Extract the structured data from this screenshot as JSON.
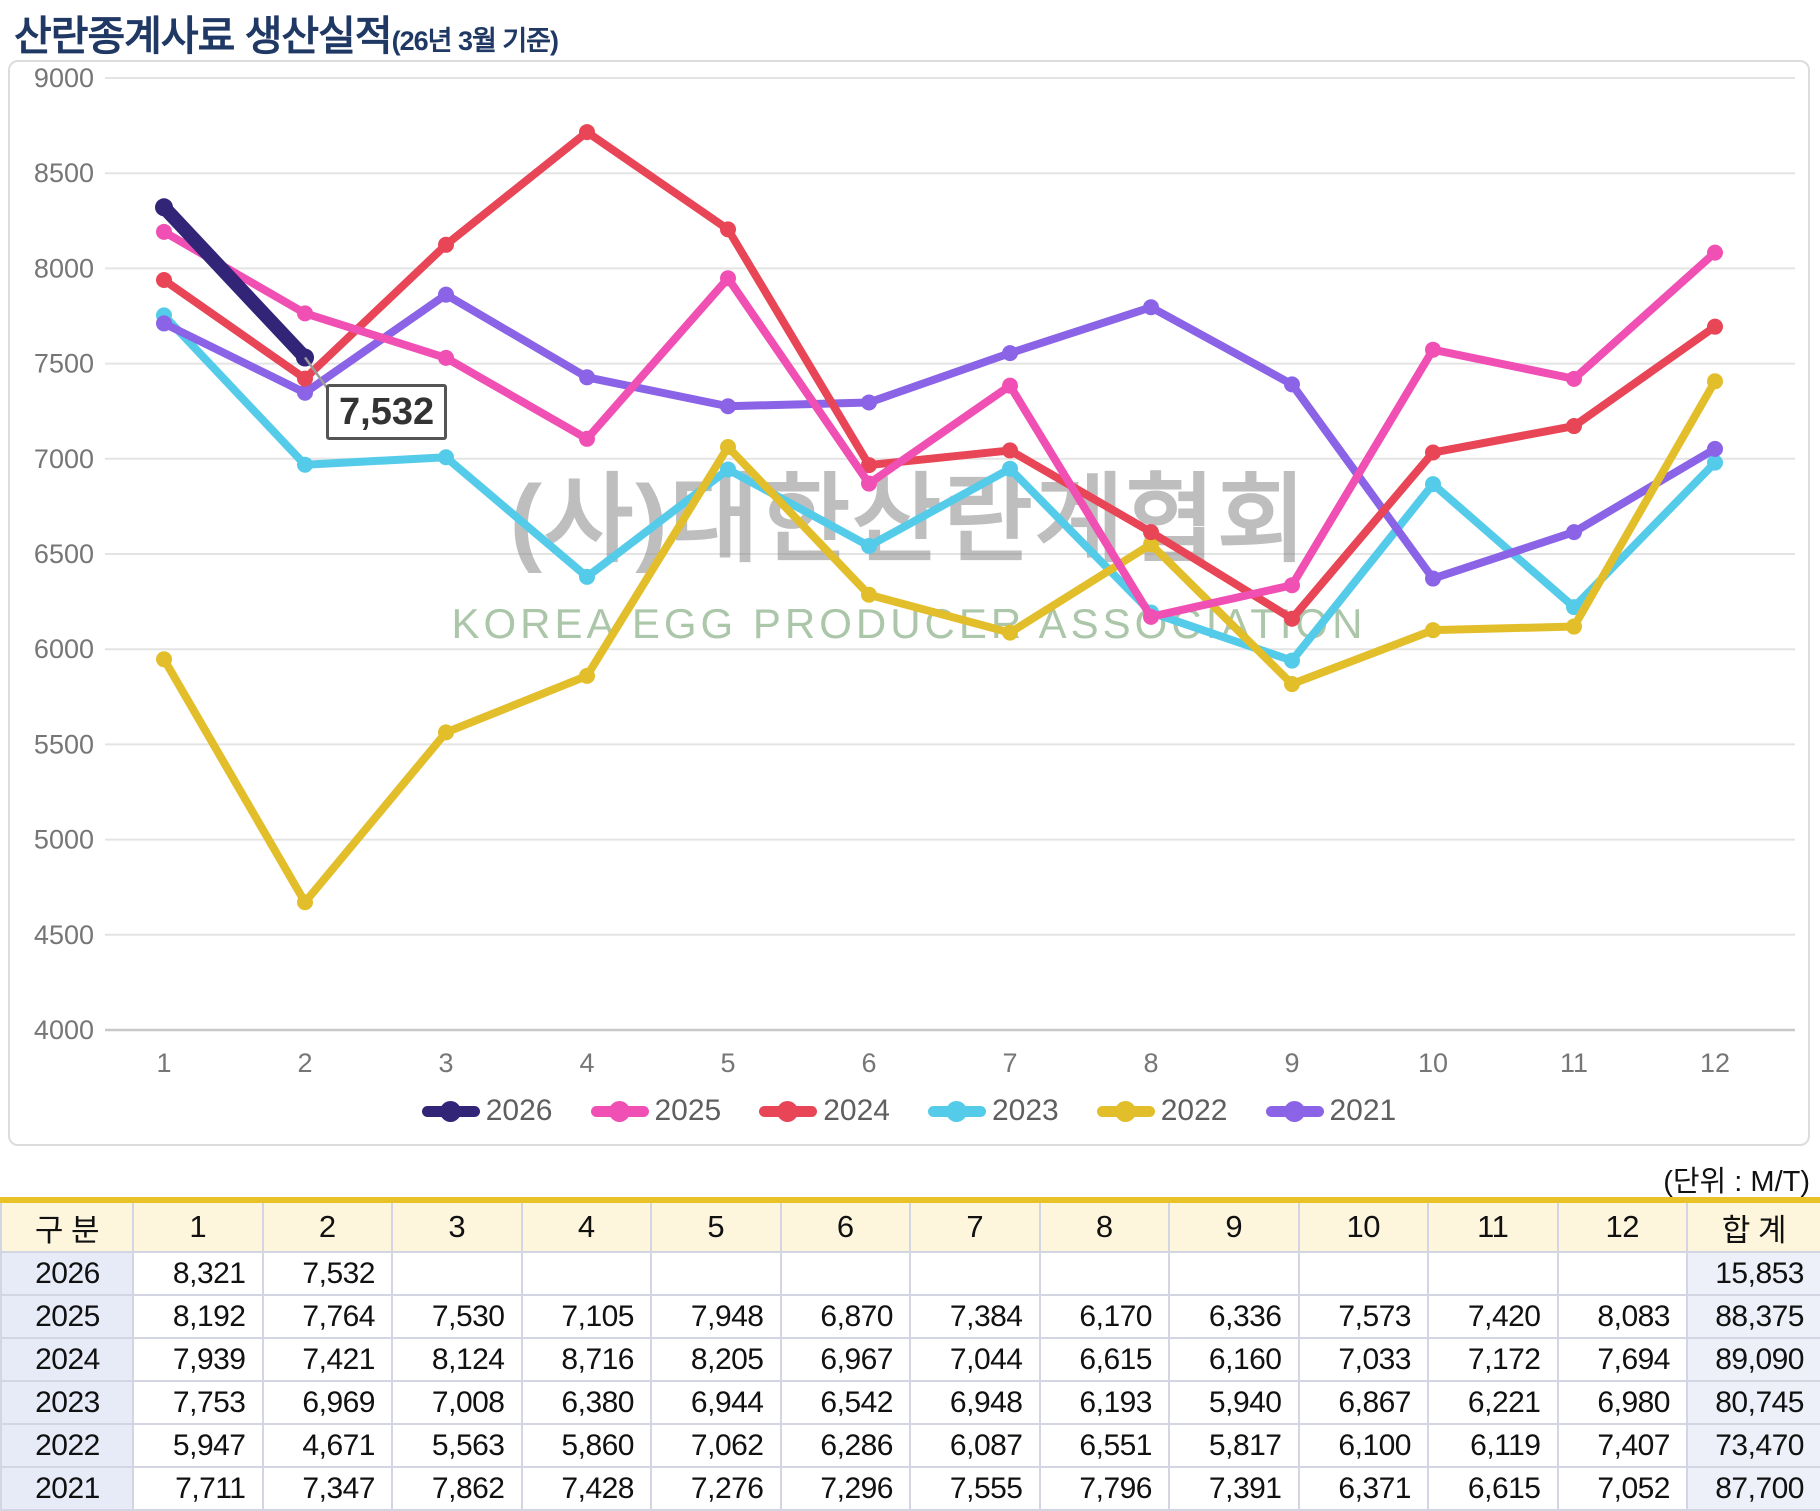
{
  "title": {
    "main": "산란종계사료 생산실적",
    "suffix": "(26년 3월 기준)"
  },
  "unit_label": "(단위 : M/T)",
  "watermark": {
    "korean": "(사)대한산란계협회",
    "english": "KOREA EGG PRODUCER ASSOCIATION"
  },
  "tooltip": {
    "value": "7,532",
    "series": "2026",
    "month": 2
  },
  "colors": {
    "title": "#203864",
    "table_top_border": "#E9C227",
    "grid": "#e4e4e4",
    "axis_text": "#767676"
  },
  "chart_data": {
    "type": "line",
    "x": [
      1,
      2,
      3,
      4,
      5,
      6,
      7,
      8,
      9,
      10,
      11,
      12
    ],
    "ylim": [
      4000,
      9000
    ],
    "ytick_step": 500,
    "grid": true,
    "legend_position": "bottom",
    "series": [
      {
        "name": "2026",
        "color": "#322578",
        "values": [
          8321,
          7532
        ]
      },
      {
        "name": "2025",
        "color": "#F04FB4",
        "values": [
          8192,
          7764,
          7530,
          7105,
          7948,
          6870,
          7384,
          6170,
          6336,
          7573,
          7420,
          8083
        ]
      },
      {
        "name": "2024",
        "color": "#E84556",
        "values": [
          7939,
          7421,
          8124,
          8716,
          8205,
          6967,
          7044,
          6615,
          6160,
          7033,
          7172,
          7694
        ]
      },
      {
        "name": "2023",
        "color": "#55CBEA",
        "values": [
          7753,
          6969,
          7008,
          6380,
          6944,
          6542,
          6948,
          6193,
          5940,
          6867,
          6221,
          6980
        ]
      },
      {
        "name": "2022",
        "color": "#E3BE2B",
        "values": [
          5947,
          4671,
          5563,
          5860,
          7062,
          6286,
          6087,
          6551,
          5817,
          6100,
          6119,
          7407
        ]
      },
      {
        "name": "2021",
        "color": "#8A63E6",
        "values": [
          7711,
          7347,
          7862,
          7428,
          7276,
          7296,
          7555,
          7796,
          7391,
          6371,
          6615,
          7052
        ]
      }
    ]
  },
  "table": {
    "header": [
      "구 분",
      "1",
      "2",
      "3",
      "4",
      "5",
      "6",
      "7",
      "8",
      "9",
      "10",
      "11",
      "12",
      "합 계"
    ],
    "rows": [
      {
        "label": "2026",
        "cells": [
          "8,321",
          "7,532",
          "",
          "",
          "",
          "",
          "",
          "",
          "",
          "",
          "",
          ""
        ],
        "total": "15,853"
      },
      {
        "label": "2025",
        "cells": [
          "8,192",
          "7,764",
          "7,530",
          "7,105",
          "7,948",
          "6,870",
          "7,384",
          "6,170",
          "6,336",
          "7,573",
          "7,420",
          "8,083"
        ],
        "total": "88,375"
      },
      {
        "label": "2024",
        "cells": [
          "7,939",
          "7,421",
          "8,124",
          "8,716",
          "8,205",
          "6,967",
          "7,044",
          "6,615",
          "6,160",
          "7,033",
          "7,172",
          "7,694"
        ],
        "total": "89,090"
      },
      {
        "label": "2023",
        "cells": [
          "7,753",
          "6,969",
          "7,008",
          "6,380",
          "6,944",
          "6,542",
          "6,948",
          "6,193",
          "5,940",
          "6,867",
          "6,221",
          "6,980"
        ],
        "total": "80,745"
      },
      {
        "label": "2022",
        "cells": [
          "5,947",
          "4,671",
          "5,563",
          "5,860",
          "7,062",
          "6,286",
          "6,087",
          "6,551",
          "5,817",
          "6,100",
          "6,119",
          "7,407"
        ],
        "total": "73,470"
      },
      {
        "label": "2021",
        "cells": [
          "7,711",
          "7,347",
          "7,862",
          "7,428",
          "7,276",
          "7,296",
          "7,555",
          "7,796",
          "7,391",
          "6,371",
          "6,615",
          "7,052"
        ],
        "total": "87,700"
      }
    ]
  }
}
